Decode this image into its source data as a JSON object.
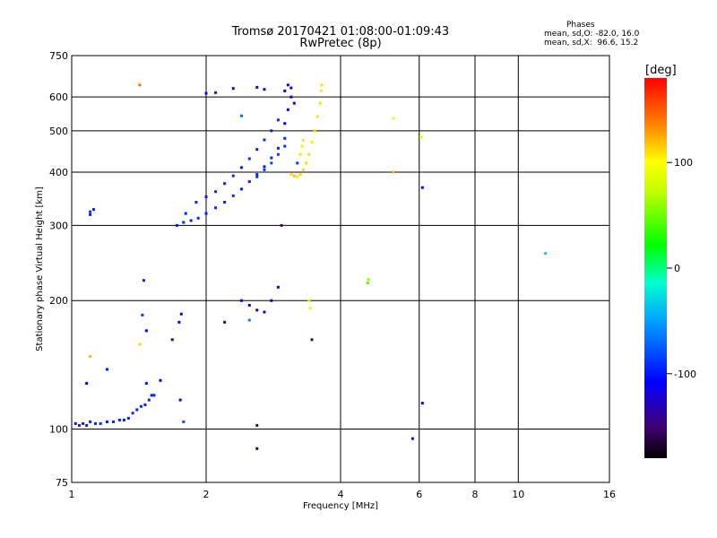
{
  "header": {
    "title_line1": "Tromsø 20170421 01:08:00-01:09:43",
    "title_line2": "RwPretec (8p)"
  },
  "phases_box": {
    "title": "Phases",
    "line1": "mean, sd,O: -82.0, 16.0",
    "line2": "mean, sd,X:  96.6, 15.2"
  },
  "colorbar": {
    "unit": "[deg]",
    "ticks": [
      {
        "value": 100,
        "label": "100"
      },
      {
        "value": 0,
        "label": "0"
      },
      {
        "value": -100,
        "label": "-100"
      }
    ],
    "range": [
      -180,
      180
    ]
  },
  "chart_data": {
    "type": "scatter",
    "title": "Tromsø 20170421 01:08:00-01:09:43",
    "subtitle": "RwPretec (8p)",
    "xlabel": "Frequency [MHz]",
    "ylabel": "Stationary phase Virtual Height [km]",
    "x_scale": "log",
    "y_scale": "log",
    "xlim": [
      1,
      16
    ],
    "ylim": [
      75,
      750
    ],
    "x_ticks": [
      {
        "value": 1,
        "label": "1"
      },
      {
        "value": 2,
        "label": "2"
      },
      {
        "value": 4,
        "label": "4"
      },
      {
        "value": 6,
        "label": "6"
      },
      {
        "value": 8,
        "label": "8"
      },
      {
        "value": 10,
        "label": "10"
      },
      {
        "value": 16,
        "label": "16"
      }
    ],
    "y_ticks": [
      {
        "value": 75,
        "label": "75"
      },
      {
        "value": 100,
        "label": "100"
      },
      {
        "value": 200,
        "label": "200"
      },
      {
        "value": 300,
        "label": "300"
      },
      {
        "value": 400,
        "label": "400"
      },
      {
        "value": 500,
        "label": "500"
      },
      {
        "value": 600,
        "label": "600"
      },
      {
        "value": 750,
        "label": "750"
      }
    ],
    "x_gridlines": [
      2,
      4,
      6,
      8,
      10
    ],
    "y_gridlines": [
      100,
      200,
      300,
      400,
      500,
      600
    ],
    "color_scale": "phase [deg], rainbow from -180 (black) to +180 (red)",
    "points": [
      [
        1.02,
        103,
        -100
      ],
      [
        1.04,
        102,
        -95
      ],
      [
        1.06,
        103,
        -100
      ],
      [
        1.08,
        102,
        -98
      ],
      [
        1.1,
        104,
        -95
      ],
      [
        1.13,
        103,
        -100
      ],
      [
        1.16,
        103,
        -95
      ],
      [
        1.2,
        104,
        -100
      ],
      [
        1.24,
        104,
        -98
      ],
      [
        1.28,
        105,
        -95
      ],
      [
        1.31,
        105,
        -100
      ],
      [
        1.34,
        106,
        -97
      ],
      [
        1.37,
        109,
        -95
      ],
      [
        1.4,
        111,
        -100
      ],
      [
        1.43,
        113,
        -95
      ],
      [
        1.46,
        114,
        -98
      ],
      [
        1.49,
        117,
        -95
      ],
      [
        1.51,
        120,
        -100
      ],
      [
        1.53,
        120,
        -95
      ],
      [
        1.1,
        323,
        -95
      ],
      [
        1.12,
        327,
        -100
      ],
      [
        1.1,
        318,
        -100
      ],
      [
        1.45,
        223,
        -100
      ],
      [
        1.47,
        170,
        -110
      ],
      [
        1.47,
        128,
        -100
      ],
      [
        1.08,
        128,
        -110
      ],
      [
        1.44,
        185,
        -90
      ],
      [
        1.58,
        130,
        -110
      ],
      [
        1.2,
        138,
        -100
      ],
      [
        1.68,
        162,
        -130
      ],
      [
        1.74,
        178,
        -110
      ],
      [
        1.76,
        186,
        -115
      ],
      [
        1.75,
        117,
        -120
      ],
      [
        1.78,
        104,
        -80
      ],
      [
        1.72,
        300,
        -100
      ],
      [
        1.78,
        305,
        -95
      ],
      [
        1.85,
        308,
        -100
      ],
      [
        1.92,
        312,
        -95
      ],
      [
        2.0,
        320,
        -100
      ],
      [
        2.1,
        330,
        -95
      ],
      [
        2.2,
        340,
        -100
      ],
      [
        2.3,
        352,
        -95
      ],
      [
        2.4,
        365,
        -100
      ],
      [
        2.5,
        380,
        -100
      ],
      [
        2.6,
        395,
        -95
      ],
      [
        2.7,
        412,
        -100
      ],
      [
        2.8,
        432,
        -95
      ],
      [
        2.9,
        455,
        -100
      ],
      [
        3.0,
        480,
        -95
      ],
      [
        1.8,
        320,
        -100
      ],
      [
        1.9,
        340,
        -95
      ],
      [
        2.0,
        350,
        -100
      ],
      [
        2.1,
        360,
        -95
      ],
      [
        2.2,
        376,
        -100
      ],
      [
        2.3,
        392,
        -95
      ],
      [
        2.4,
        410,
        -100
      ],
      [
        2.5,
        430,
        -95
      ],
      [
        2.6,
        452,
        -100
      ],
      [
        2.7,
        476,
        -95
      ],
      [
        2.8,
        500,
        -100
      ],
      [
        2.9,
        530,
        -95
      ],
      [
        2.6,
        390,
        -90
      ],
      [
        2.7,
        405,
        -88
      ],
      [
        2.8,
        420,
        -85
      ],
      [
        2.9,
        440,
        -88
      ],
      [
        3.0,
        460,
        -90
      ],
      [
        3.0,
        520,
        -120
      ],
      [
        3.05,
        560,
        -125
      ],
      [
        3.1,
        600,
        -120
      ],
      [
        3.0,
        620,
        -125
      ],
      [
        3.1,
        630,
        -115
      ],
      [
        3.15,
        580,
        -120
      ],
      [
        3.05,
        640,
        -125
      ],
      [
        2.0,
        612,
        -110
      ],
      [
        2.1,
        614,
        -100
      ],
      [
        2.3,
        628,
        -115
      ],
      [
        2.6,
        632,
        -110
      ],
      [
        2.7,
        625,
        -115
      ],
      [
        2.4,
        542,
        -70
      ],
      [
        3.2,
        420,
        -90
      ],
      [
        2.4,
        200,
        -120
      ],
      [
        2.5,
        195,
        -125
      ],
      [
        2.6,
        190,
        -120
      ],
      [
        2.7,
        188,
        -115
      ],
      [
        2.8,
        200,
        -125
      ],
      [
        2.9,
        215,
        -110
      ],
      [
        2.5,
        180,
        -60
      ],
      [
        3.1,
        395,
        110
      ],
      [
        3.15,
        392,
        115
      ],
      [
        3.2,
        390,
        105
      ],
      [
        3.25,
        395,
        110
      ],
      [
        3.3,
        405,
        112
      ],
      [
        3.35,
        420,
        108
      ],
      [
        3.4,
        440,
        110
      ],
      [
        3.45,
        470,
        105
      ],
      [
        3.5,
        500,
        110
      ],
      [
        3.55,
        540,
        108
      ],
      [
        3.6,
        580,
        110
      ],
      [
        3.62,
        620,
        105
      ],
      [
        3.63,
        640,
        108
      ],
      [
        3.3,
        475,
        80
      ],
      [
        3.28,
        460,
        85
      ],
      [
        3.25,
        440,
        80
      ],
      [
        3.4,
        200,
        80
      ],
      [
        3.42,
        192,
        85
      ],
      [
        3.45,
        162,
        -150
      ],
      [
        2.6,
        102,
        -150
      ],
      [
        2.6,
        90,
        -160
      ],
      [
        4.6,
        220,
        40
      ],
      [
        4.62,
        224,
        60
      ],
      [
        5.25,
        535,
        90
      ],
      [
        5.25,
        400,
        120
      ],
      [
        5.8,
        95,
        -110
      ],
      [
        6.05,
        483,
        80
      ],
      [
        6.1,
        368,
        -120
      ],
      [
        6.1,
        115,
        -130
      ],
      [
        11.5,
        258,
        -30
      ],
      [
        1.42,
        640,
        140
      ],
      [
        1.1,
        148,
        120
      ],
      [
        1.42,
        158,
        110
      ],
      [
        2.2,
        178,
        -150
      ],
      [
        2.95,
        300,
        -150
      ]
    ]
  }
}
